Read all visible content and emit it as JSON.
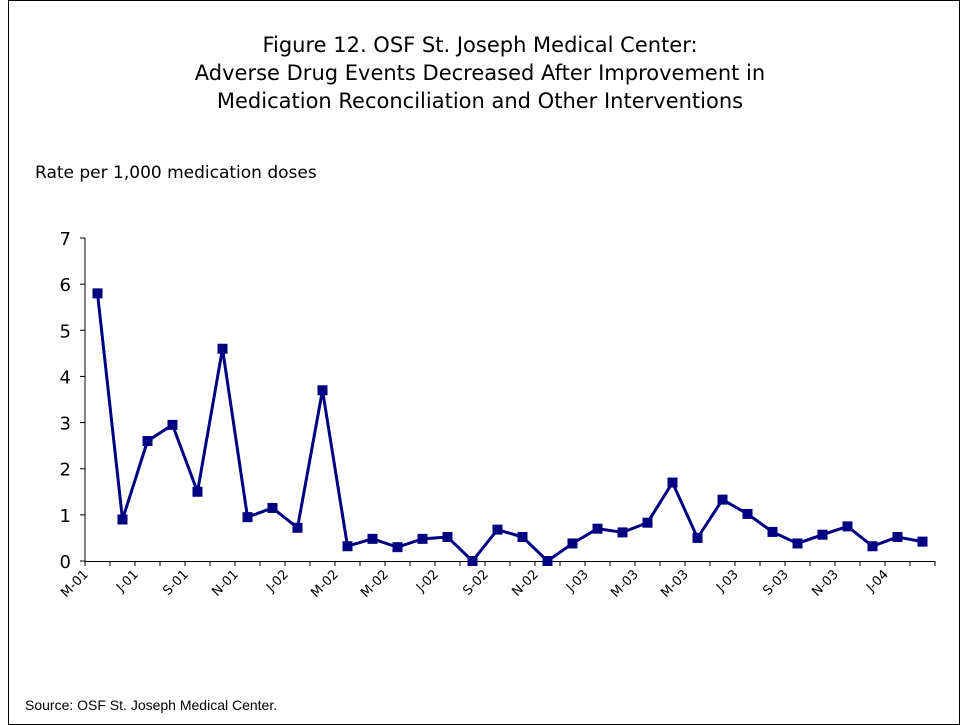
{
  "chart_data": {
    "type": "line",
    "title": [
      "Figure 12. OSF St. Joseph Medical Center:",
      "Adverse Drug Events Decreased After Improvement in",
      "Medication Reconciliation and Other Interventions"
    ],
    "y_label": "Rate per 1,000 medication doses",
    "source": "Source: OSF St. Joseph Medical Center.",
    "categories": [
      "M-01",
      null,
      "J-01",
      null,
      "S-01",
      null,
      "N-01",
      null,
      "J-02",
      null,
      "M-02",
      null,
      "M-02",
      null,
      "J-02",
      null,
      "S-02",
      null,
      "N-02",
      null,
      "J-03",
      null,
      "M-03",
      null,
      "M-03",
      null,
      "J-03",
      null,
      "S-03",
      null,
      "N-03",
      null,
      "J-04",
      null
    ],
    "series": [
      {
        "name": "Adverse drug events",
        "color": "#000080",
        "values": [
          5.8,
          0.9,
          2.6,
          2.95,
          1.5,
          4.6,
          0.95,
          1.15,
          0.72,
          3.7,
          0.32,
          0.48,
          0.3,
          0.48,
          0.52,
          0,
          0.68,
          0.52,
          0,
          0.38,
          0.7,
          0.62,
          0.83,
          1.7,
          0.5,
          1.33,
          1.02,
          0.63,
          0.38,
          0.57,
          0.75,
          0.32,
          0.52,
          0.42
        ]
      }
    ],
    "ylim": [
      0,
      7
    ],
    "yticks": [
      0,
      1,
      2,
      3,
      4,
      5,
      6,
      7
    ],
    "grid": false
  }
}
